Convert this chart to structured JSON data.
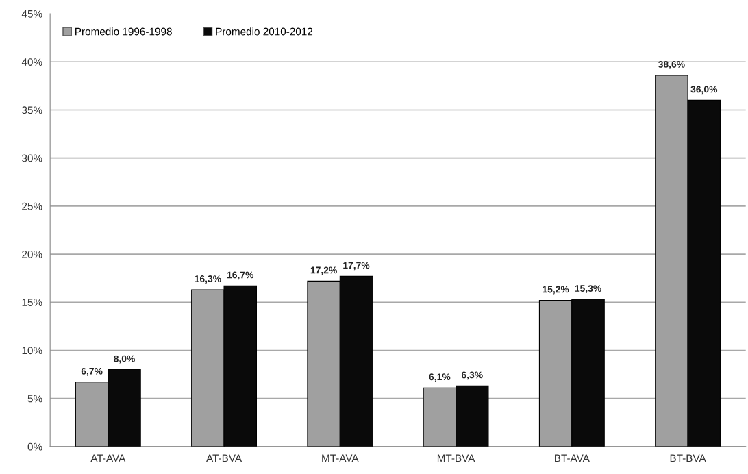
{
  "chart_data": {
    "type": "bar",
    "categories": [
      "AT-AVA",
      "AT-BVA",
      "MT-AVA",
      "MT-BVA",
      "BT-AVA",
      "BT-BVA"
    ],
    "series": [
      {
        "name": "Promedio 1996-1998",
        "color": "#a0a0a0",
        "values": [
          6.7,
          16.3,
          17.2,
          6.1,
          15.2,
          38.6
        ],
        "value_labels": [
          "6,7%",
          "16,3%",
          "17,2%",
          "6,1%",
          "15,2%",
          "38,6%"
        ]
      },
      {
        "name": "Promedio 2010-2012",
        "color": "#0a0a0a",
        "values": [
          8.0,
          16.7,
          17.7,
          6.3,
          15.3,
          36.0
        ],
        "value_labels": [
          "8,0%",
          "16,7%",
          "17,7%",
          "6,3%",
          "15,3%",
          "36,0%"
        ]
      }
    ],
    "ylim": [
      0,
      45
    ],
    "yticks": [
      {
        "value": 0,
        "label": "0%"
      },
      {
        "value": 5,
        "label": "5%"
      },
      {
        "value": 10,
        "label": "10%"
      },
      {
        "value": 15,
        "label": "15%"
      },
      {
        "value": 20,
        "label": "20%"
      },
      {
        "value": 25,
        "label": "25%"
      },
      {
        "value": 30,
        "label": "30%"
      },
      {
        "value": 35,
        "label": "35%"
      },
      {
        "value": 40,
        "label": "40%"
      },
      {
        "value": 45,
        "label": "45%"
      }
    ],
    "grid": "y",
    "legend": "top left"
  }
}
